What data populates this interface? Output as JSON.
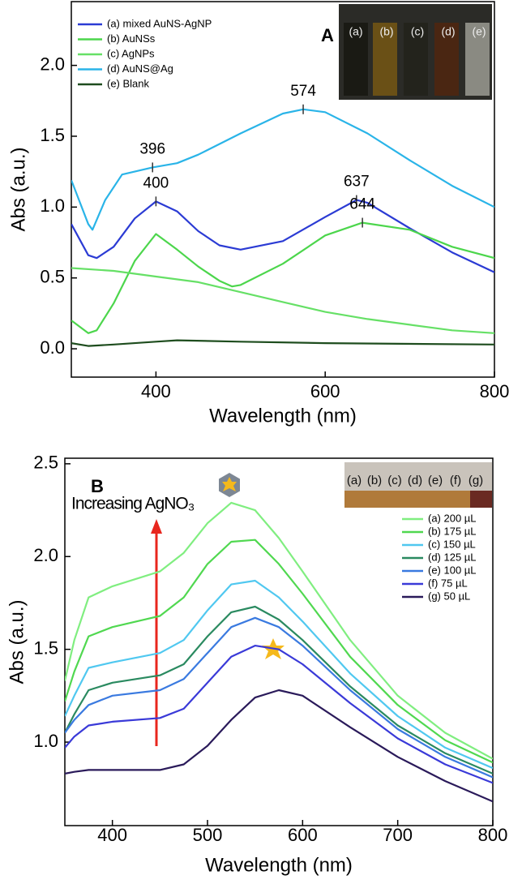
{
  "chart_data": [
    {
      "type": "line",
      "panel": "A",
      "xlabel": "Wavelength (nm)",
      "ylabel": "Abs (a.u.)",
      "xlim": [
        300,
        800
      ],
      "ylim": [
        -0.2,
        2.45
      ],
      "xticks": [
        400,
        600,
        800
      ],
      "yticks": [
        {
          "value": 0,
          "label": "0.0"
        },
        {
          "value": 0.5,
          "label": "0.5"
        },
        {
          "value": 1,
          "label": "1.0"
        },
        {
          "value": 1.5,
          "label": "1.5"
        },
        {
          "value": 2,
          "label": "2.0"
        }
      ],
      "inset_labels": [
        "(a)",
        "(b)",
        "(c)",
        "(d)",
        "(e)"
      ],
      "series": [
        {
          "name": "(a) mixed AuNS-AgNP",
          "color": "#2b3bd4",
          "x": [
            300,
            320,
            330,
            350,
            375,
            400,
            425,
            450,
            475,
            500,
            550,
            600,
            637,
            650,
            700,
            750,
            800
          ],
          "values": [
            0.88,
            0.66,
            0.64,
            0.72,
            0.92,
            1.04,
            0.97,
            0.83,
            0.73,
            0.7,
            0.76,
            0.93,
            1.05,
            1.03,
            0.85,
            0.68,
            0.54
          ]
        },
        {
          "name": "(b) AuNSs",
          "color": "#4cd64c",
          "x": [
            300,
            320,
            330,
            350,
            375,
            400,
            425,
            450,
            475,
            490,
            500,
            550,
            600,
            644,
            700,
            750,
            800
          ],
          "values": [
            0.2,
            0.11,
            0.13,
            0.32,
            0.62,
            0.81,
            0.7,
            0.58,
            0.48,
            0.44,
            0.45,
            0.6,
            0.8,
            0.89,
            0.84,
            0.72,
            0.64
          ]
        },
        {
          "name": "(c) AgNPs",
          "color": "#66e066",
          "x": [
            300,
            350,
            400,
            450,
            500,
            550,
            600,
            650,
            700,
            750,
            800
          ],
          "values": [
            0.57,
            0.55,
            0.51,
            0.47,
            0.4,
            0.33,
            0.26,
            0.21,
            0.17,
            0.13,
            0.11
          ]
        },
        {
          "name": "(d) AuNS@Ag",
          "color": "#2ab4e8",
          "x": [
            300,
            320,
            325,
            340,
            360,
            396,
            425,
            450,
            500,
            550,
            574,
            600,
            650,
            700,
            750,
            800
          ],
          "values": [
            1.19,
            0.88,
            0.84,
            1.05,
            1.23,
            1.28,
            1.31,
            1.37,
            1.52,
            1.66,
            1.69,
            1.67,
            1.52,
            1.33,
            1.15,
            1.0
          ]
        },
        {
          "name": "(e) Blank",
          "color": "#1e4d1e",
          "x": [
            300,
            320,
            350,
            400,
            425,
            500,
            600,
            800
          ],
          "values": [
            0.04,
            0.02,
            0.03,
            0.05,
            0.06,
            0.05,
            0.04,
            0.03
          ]
        }
      ],
      "peaks": [
        {
          "x": 396,
          "y": 1.28
        },
        {
          "x": 400,
          "y": 1.04
        },
        {
          "x": 574,
          "y": 1.69
        },
        {
          "x": 637,
          "y": 1.05
        },
        {
          "x": 644,
          "y": 0.89
        }
      ]
    },
    {
      "type": "line",
      "panel": "B",
      "xlabel": "Wavelength (nm)",
      "ylabel": "Abs (a.u.)",
      "xlim": [
        350,
        800
      ],
      "ylim": [
        0.55,
        2.53
      ],
      "xticks": [
        400,
        500,
        600,
        700,
        800
      ],
      "yticks": [
        {
          "value": 1,
          "label": "1.0"
        },
        {
          "value": 1.5,
          "label": "1.5"
        },
        {
          "value": 2,
          "label": "2.0"
        },
        {
          "value": 2.5,
          "label": "2.5"
        }
      ],
      "inset_labels": [
        "(a)",
        "(b)",
        "(c)",
        "(d)",
        "(e)",
        "(f)",
        "(g)"
      ],
      "annotation": "Increasing AgNO₃",
      "series": [
        {
          "name": "(a) 200 µL",
          "color": "#80ee80",
          "x": [
            350,
            360,
            375,
            400,
            450,
            475,
            500,
            525,
            550,
            575,
            600,
            650,
            700,
            750,
            800
          ],
          "values": [
            1.33,
            1.55,
            1.78,
            1.84,
            1.92,
            2.02,
            2.18,
            2.29,
            2.25,
            2.1,
            1.92,
            1.55,
            1.25,
            1.05,
            0.91
          ]
        },
        {
          "name": "(b) 175 µL",
          "color": "#50d850",
          "x": [
            350,
            360,
            375,
            400,
            450,
            475,
            500,
            525,
            550,
            575,
            600,
            650,
            700,
            750,
            800
          ],
          "values": [
            1.22,
            1.38,
            1.57,
            1.62,
            1.68,
            1.78,
            1.96,
            2.08,
            2.09,
            1.96,
            1.8,
            1.46,
            1.2,
            1.01,
            0.89
          ]
        },
        {
          "name": "(c) 150 µL",
          "color": "#50c8f0",
          "x": [
            350,
            360,
            375,
            400,
            450,
            475,
            500,
            525,
            550,
            575,
            600,
            650,
            700,
            750,
            800
          ],
          "values": [
            1.14,
            1.25,
            1.4,
            1.43,
            1.48,
            1.55,
            1.71,
            1.85,
            1.87,
            1.78,
            1.65,
            1.37,
            1.14,
            0.97,
            0.86
          ]
        },
        {
          "name": "(d) 125 µL",
          "color": "#2a8a60",
          "x": [
            350,
            360,
            375,
            400,
            450,
            475,
            500,
            525,
            550,
            575,
            600,
            650,
            700,
            750,
            800
          ],
          "values": [
            1.05,
            1.15,
            1.28,
            1.32,
            1.36,
            1.42,
            1.57,
            1.7,
            1.73,
            1.66,
            1.55,
            1.3,
            1.09,
            0.94,
            0.83
          ]
        },
        {
          "name": "(e) 100 µL",
          "color": "#3a7ae0",
          "x": [
            350,
            360,
            375,
            400,
            450,
            475,
            500,
            525,
            550,
            575,
            600,
            650,
            700,
            750,
            800
          ],
          "values": [
            1.05,
            1.12,
            1.2,
            1.25,
            1.28,
            1.34,
            1.48,
            1.62,
            1.67,
            1.62,
            1.52,
            1.28,
            1.07,
            0.92,
            0.81
          ]
        },
        {
          "name": "(f)  75 µL",
          "color": "#3a3ad8",
          "x": [
            350,
            360,
            375,
            400,
            450,
            475,
            500,
            525,
            550,
            575,
            600,
            650,
            700,
            750,
            800
          ],
          "values": [
            0.97,
            1.03,
            1.09,
            1.11,
            1.13,
            1.18,
            1.32,
            1.46,
            1.52,
            1.5,
            1.42,
            1.21,
            1.02,
            0.88,
            0.78
          ]
        },
        {
          "name": "(g)  50 µL",
          "color": "#2a1a5a",
          "x": [
            350,
            360,
            375,
            400,
            450,
            475,
            500,
            525,
            550,
            575,
            600,
            650,
            700,
            750,
            800
          ],
          "values": [
            0.83,
            0.84,
            0.85,
            0.85,
            0.85,
            0.88,
            0.98,
            1.12,
            1.24,
            1.28,
            1.25,
            1.08,
            0.92,
            0.79,
            0.68
          ]
        }
      ]
    }
  ]
}
